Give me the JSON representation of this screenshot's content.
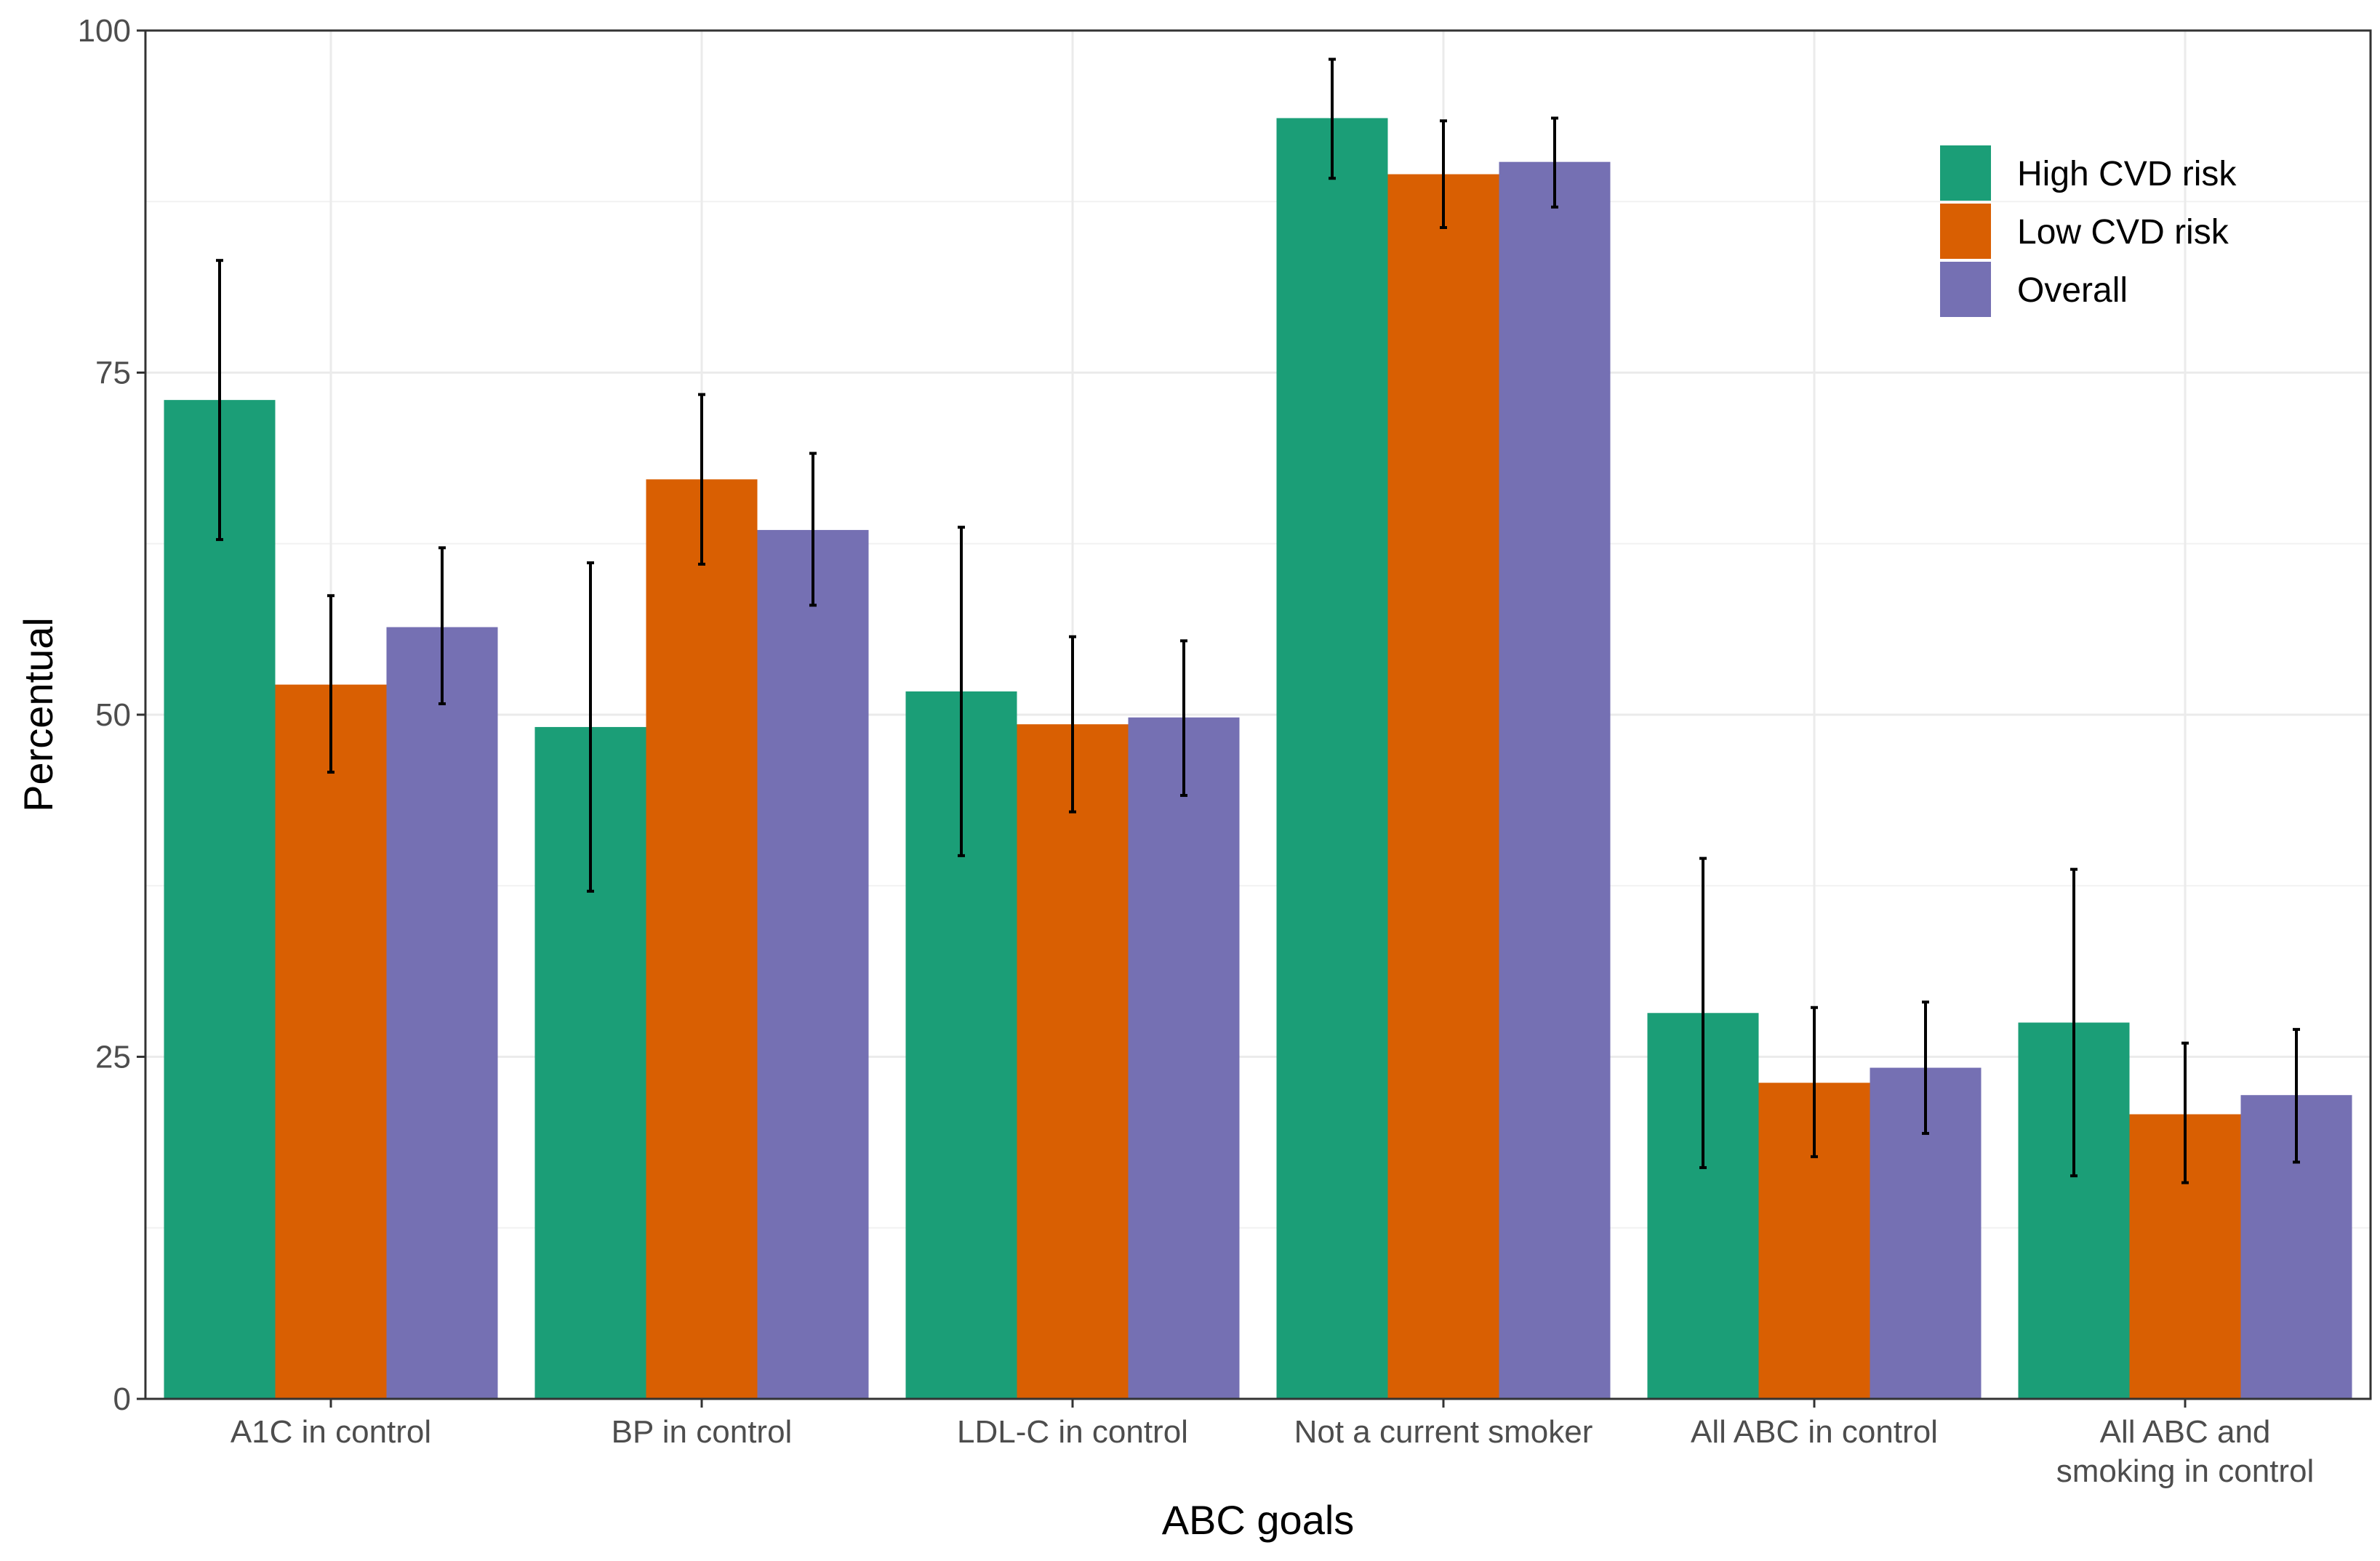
{
  "chart_data": {
    "type": "bar",
    "title": "",
    "xlabel": "ABC goals",
    "ylabel": "Percentual",
    "ylim": [
      0,
      100
    ],
    "yticks": [
      0,
      25,
      50,
      75,
      100
    ],
    "grid": true,
    "legend_position": "top-right",
    "categories": [
      [
        "A1C in control"
      ],
      [
        "BP in control"
      ],
      [
        "LDL-C in control"
      ],
      [
        "Not a current smoker"
      ],
      [
        "All ABC in control"
      ],
      [
        "All ABC and",
        "smoking in control"
      ]
    ],
    "series": [
      {
        "name": "High CVD risk",
        "color": "#1b9e77",
        "values": [
          73.0,
          49.1,
          51.7,
          93.6,
          28.2,
          27.5
        ],
        "error_low": [
          62.8,
          37.1,
          39.7,
          89.2,
          16.9,
          16.3
        ],
        "error_high": [
          83.2,
          61.1,
          63.7,
          97.9,
          39.5,
          38.7
        ]
      },
      {
        "name": "Low CVD risk",
        "color": "#d95f02",
        "values": [
          52.2,
          67.2,
          49.3,
          89.5,
          23.1,
          20.8
        ],
        "error_low": [
          45.8,
          61.0,
          42.9,
          85.6,
          17.7,
          15.8
        ],
        "error_high": [
          58.7,
          73.4,
          55.7,
          93.4,
          28.6,
          26.0
        ]
      },
      {
        "name": "Overall",
        "color": "#7570b3",
        "values": [
          56.4,
          63.5,
          49.8,
          90.4,
          24.2,
          22.2
        ],
        "error_low": [
          50.8,
          58.0,
          44.1,
          87.1,
          19.4,
          17.3
        ],
        "error_high": [
          62.2,
          69.1,
          55.4,
          93.6,
          29.0,
          27.0
        ]
      }
    ]
  }
}
